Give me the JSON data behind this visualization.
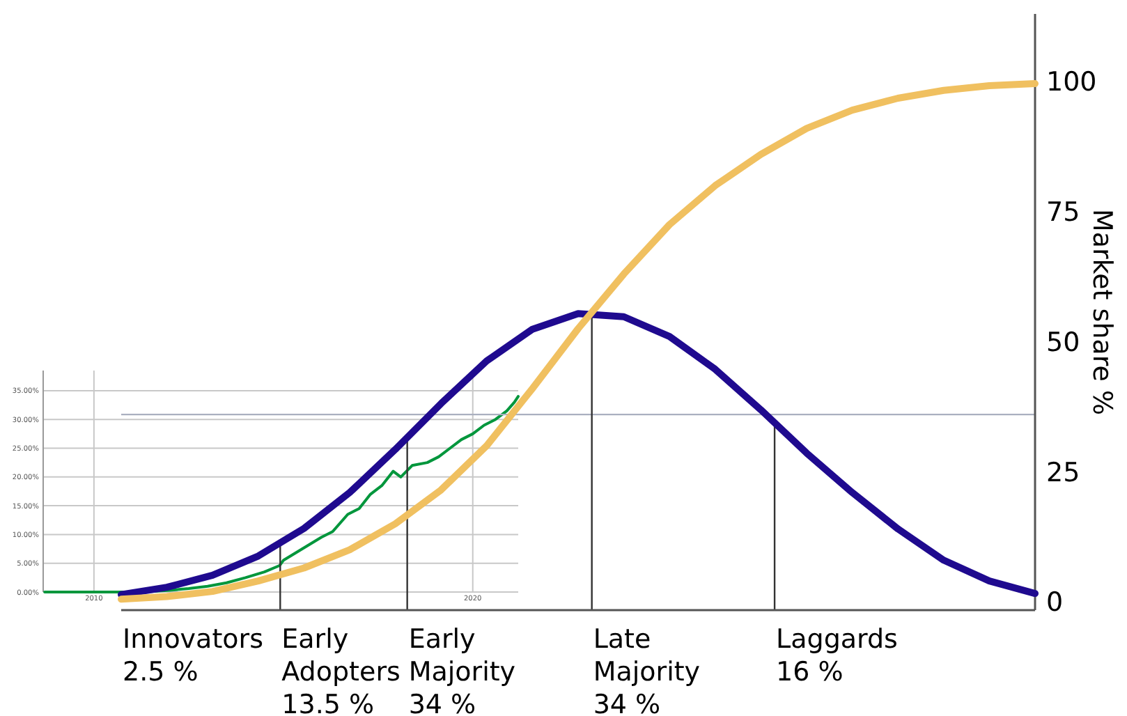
{
  "chart_data": [
    {
      "type": "line",
      "ylabel": "Market share %",
      "categories": [
        null,
        null,
        null,
        null,
        null,
        null,
        null,
        null,
        null,
        null,
        null,
        null,
        null,
        null,
        null,
        null,
        null,
        null,
        null,
        null,
        null
      ],
      "ylim": [
        -1.6,
        113
      ],
      "yticks": [
        0,
        25,
        50,
        75,
        100
      ],
      "tick_labels": "y",
      "series": [
        {
          "color": "#1f0a8f",
          "values": [
            1.4,
            2.8,
            5.1,
            8.8,
            14.1,
            21.0,
            29.3,
            38.1,
            46.3,
            52.4,
            55.4,
            54.8,
            51.0,
            44.7,
            36.9,
            28.6,
            21.0,
            14.0,
            8.0,
            4.0,
            1.6
          ]
        },
        {
          "color": "#f0c060",
          "values": [
            0.5,
            1,
            2,
            4,
            6.5,
            10,
            15,
            21.5,
            30,
            41,
            52.5,
            63,
            72.5,
            80,
            86,
            91,
            94.5,
            96.8,
            98.3,
            99.2,
            99.6
          ]
        }
      ],
      "ref_lines": [
        {
          "axis": "y",
          "value": 36,
          "color": "#aab0c0"
        }
      ],
      "annotations": [
        "Innovators 2.5 %",
        "Early Adopters 13.5 %",
        "Early Majority 34 %",
        "Late Majority 34 %",
        "Laggards 16 %"
      ]
    },
    {
      "type": "line",
      "xlim": [
        2008.66,
        2021.2
      ],
      "xticks": [
        2010,
        2020
      ],
      "ylim": [
        0,
        38.5
      ],
      "yticks": [
        {
          "value": 0,
          "label": "0.00%"
        },
        {
          "value": 5,
          "label": "5.00%"
        },
        {
          "value": 10,
          "label": "10.00%"
        },
        {
          "value": 15,
          "label": "15.00%"
        },
        {
          "value": 20,
          "label": "20.00%"
        },
        {
          "value": 25,
          "label": "25.00%"
        },
        {
          "value": 30,
          "label": "30.00%"
        },
        {
          "value": 35,
          "label": "35.00%"
        }
      ],
      "grid": true,
      "series": [
        {
          "color": "#00963c",
          "x": [
            2008.7,
            2010,
            2011,
            2011.5,
            2012,
            2012.5,
            2013,
            2013.5,
            2014,
            2014.5,
            2014.9,
            2015,
            2015.5,
            2016,
            2016.3,
            2016.7,
            2017,
            2017.3,
            2017.6,
            2017.9,
            2018.1,
            2018.4,
            2018.8,
            2019.1,
            2019.4,
            2019.7,
            2020,
            2020.3,
            2020.6,
            2020.9,
            2021.1,
            2021.2
          ],
          "values": [
            0,
            0,
            0,
            0.1,
            0.3,
            0.6,
            1.0,
            1.6,
            2.5,
            3.5,
            4.6,
            5.5,
            7.5,
            9.5,
            10.5,
            13.5,
            14.5,
            17,
            18.5,
            21,
            20,
            22,
            22.5,
            23.5,
            25,
            26.5,
            27.5,
            29,
            30,
            31.5,
            33,
            34
          ]
        }
      ]
    }
  ]
}
